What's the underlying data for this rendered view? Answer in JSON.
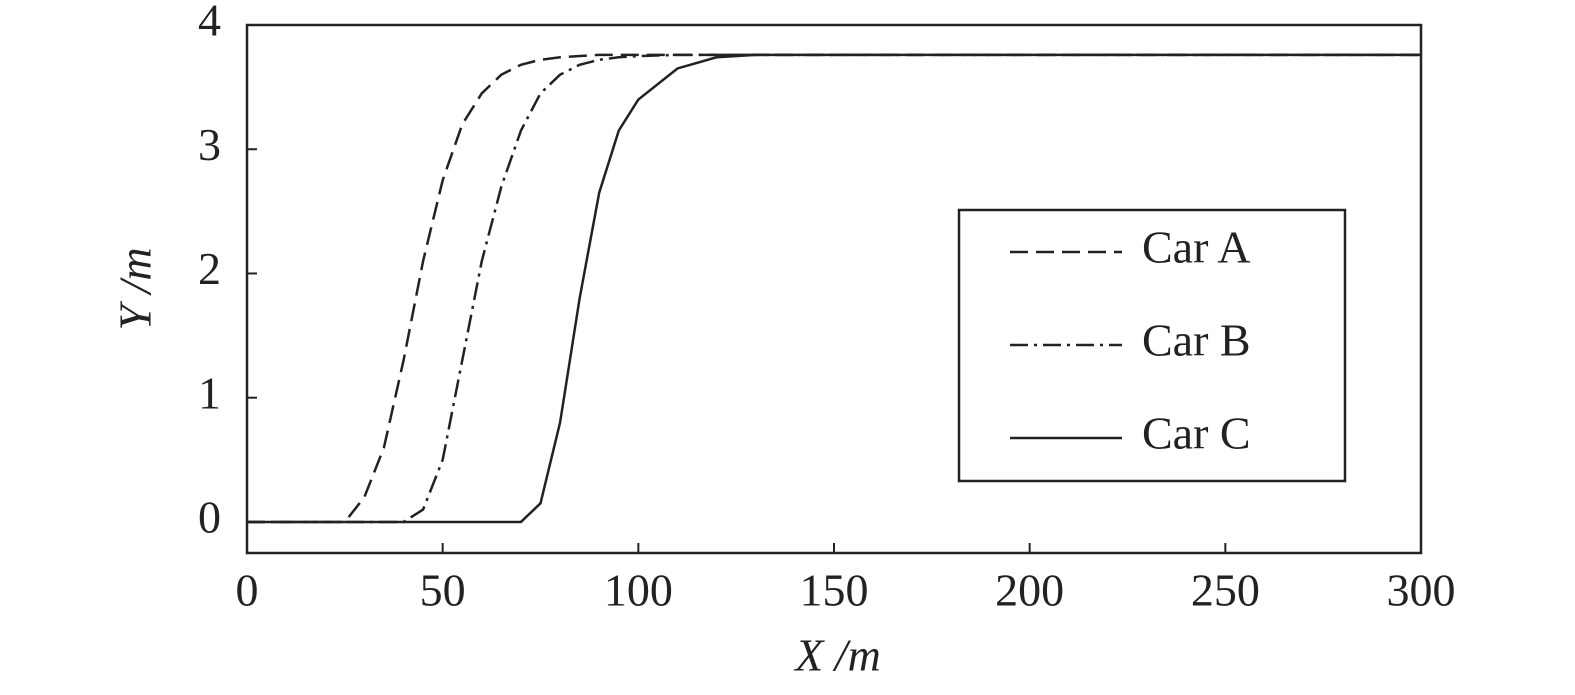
{
  "chart_data": {
    "type": "line",
    "xlabel": "X /m",
    "ylabel": "Y /m",
    "x": [
      0,
      10,
      20,
      25,
      30,
      35,
      40,
      45,
      50,
      55,
      60,
      65,
      70,
      75,
      80,
      85,
      90,
      95,
      100,
      110,
      120,
      130,
      140,
      150,
      200,
      250,
      300
    ],
    "series": [
      {
        "name": "Car A",
        "color": "#222222",
        "linestyle": "dashed",
        "values": [
          0,
          0,
          0,
          0,
          0.2,
          0.6,
          1.3,
          2.1,
          2.75,
          3.2,
          3.45,
          3.6,
          3.68,
          3.72,
          3.74,
          3.75,
          3.76,
          3.76,
          3.76,
          3.76,
          3.76,
          3.76,
          3.76,
          3.76,
          3.76,
          3.76,
          3.76
        ]
      },
      {
        "name": "Car B",
        "color": "#222222",
        "linestyle": "dashdot",
        "values": [
          0,
          0,
          0,
          0,
          0,
          0,
          0,
          0.1,
          0.5,
          1.3,
          2.1,
          2.7,
          3.15,
          3.45,
          3.6,
          3.68,
          3.72,
          3.74,
          3.75,
          3.76,
          3.76,
          3.76,
          3.76,
          3.76,
          3.76,
          3.76,
          3.76
        ]
      },
      {
        "name": "Car C",
        "color": "#222222",
        "linestyle": "solid",
        "values": [
          0,
          0,
          0,
          0,
          0,
          0,
          0,
          0,
          0,
          0,
          0,
          0,
          0,
          0.15,
          0.8,
          1.8,
          2.65,
          3.15,
          3.4,
          3.65,
          3.74,
          3.76,
          3.76,
          3.76,
          3.76,
          3.76,
          3.76
        ]
      }
    ],
    "xlim": [
      0,
      300
    ],
    "xticks": [
      0,
      50,
      100,
      150,
      200,
      250,
      300
    ],
    "ylim": [
      -0.25,
      4
    ],
    "yticks": [
      0,
      1,
      2,
      3,
      4
    ],
    "grid": false,
    "legend": "right"
  }
}
